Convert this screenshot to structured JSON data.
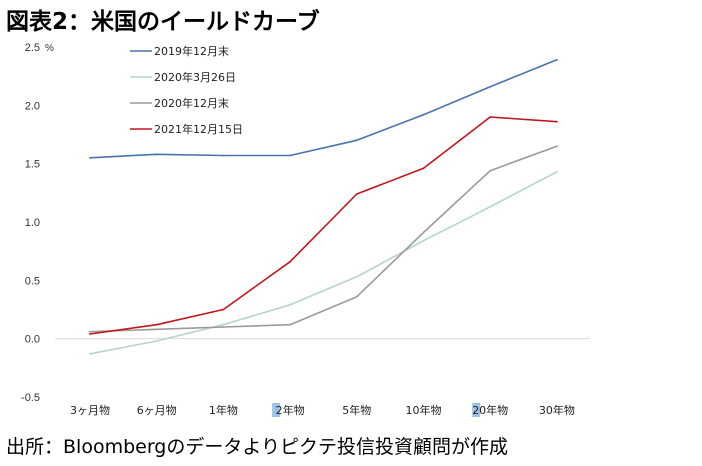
{
  "title": "図表2：米国のイールドカーブ",
  "source": "出所：Bloombergのデータよりピクテ投信投資顧問が作成",
  "chart_data": {
    "type": "line",
    "ylabel": "%",
    "ylim": [
      -0.5,
      2.5
    ],
    "yticks": [
      "2.5",
      "2.0",
      "1.5",
      "1.0",
      "0.5",
      "0.0",
      "-0.5"
    ],
    "categories": [
      "3ヶ月物",
      "6ヶ月物",
      "1年物",
      "2年物",
      "5年物",
      "10年物",
      "20年物",
      "30年物"
    ],
    "highlighted_category_char": "2",
    "legend_position": "top-left",
    "series": [
      {
        "name": "2019年12月末",
        "color": "#4a72b0",
        "values": [
          1.55,
          1.58,
          1.57,
          1.57,
          1.7,
          1.92,
          2.16,
          2.39
        ]
      },
      {
        "name": "2020年3月26日",
        "color": "#b7d3cd",
        "values": [
          -0.13,
          -0.02,
          0.12,
          0.29,
          0.53,
          0.84,
          1.13,
          1.43
        ]
      },
      {
        "name": "2020年12月末",
        "color": "#9a9a9a",
        "values": [
          0.06,
          0.08,
          0.1,
          0.12,
          0.36,
          0.91,
          1.44,
          1.65
        ]
      },
      {
        "name": "2021年12月15日",
        "color": "#c0161c",
        "values": [
          0.04,
          0.12,
          0.25,
          0.66,
          1.24,
          1.46,
          1.9,
          1.86
        ]
      }
    ]
  }
}
